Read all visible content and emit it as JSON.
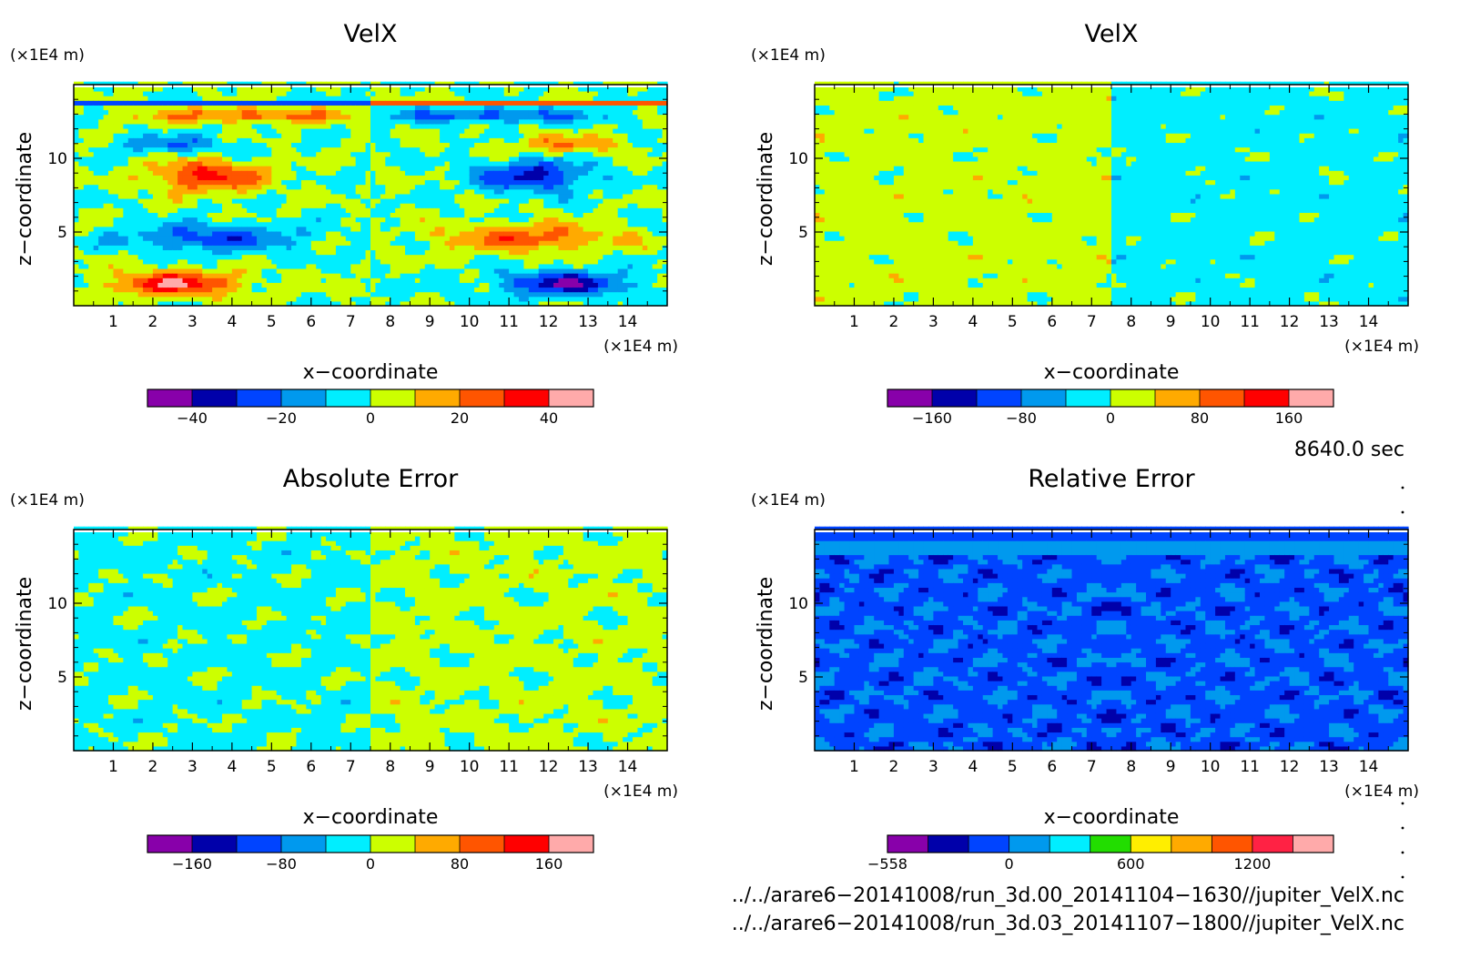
{
  "panels": [
    {
      "title": "VelX",
      "xlabel": "x−coordinate",
      "ylabel": "z−coordinate",
      "x_unit": "(×1E4 m)",
      "y_unit": "(×1E4 m)",
      "x_ticks": [
        "1",
        "2",
        "3",
        "4",
        "5",
        "6",
        "7",
        "8",
        "9",
        "10",
        "11",
        "12",
        "13",
        "14"
      ],
      "y_ticks": [
        "5",
        "10"
      ],
      "colorbar": {
        "colors": [
          "#8800aa",
          "#0000aa",
          "#0044ff",
          "#0099ee",
          "#00eeff",
          "#ccff00",
          "#ffaa00",
          "#ff5500",
          "#ff0000",
          "#ffaaaa"
        ],
        "ticks": [
          {
            "value": -40,
            "label": "−40",
            "pos": 1
          },
          {
            "value": -20,
            "label": "−20",
            "pos": 3
          },
          {
            "value": 0,
            "label": "0",
            "pos": 5
          },
          {
            "value": 20,
            "label": "20",
            "pos": 7
          },
          {
            "value": 40,
            "label": "40",
            "pos": 9
          }
        ]
      },
      "field": "velx"
    },
    {
      "title": "VelX",
      "xlabel": "x−coordinate",
      "ylabel": "z−coordinate",
      "x_unit": "(×1E4 m)",
      "y_unit": "(×1E4 m)",
      "x_ticks": [
        "1",
        "2",
        "3",
        "4",
        "5",
        "6",
        "7",
        "8",
        "9",
        "10",
        "11",
        "12",
        "13",
        "14"
      ],
      "y_ticks": [
        "5",
        "10"
      ],
      "colorbar": {
        "colors": [
          "#8800aa",
          "#0000aa",
          "#0044ff",
          "#0099ee",
          "#00eeff",
          "#ccff00",
          "#ffaa00",
          "#ff5500",
          "#ff0000",
          "#ffaaaa"
        ],
        "ticks": [
          {
            "value": -160,
            "label": "−160",
            "pos": 1
          },
          {
            "value": -80,
            "label": "−80",
            "pos": 3
          },
          {
            "value": 0,
            "label": "0",
            "pos": 5
          },
          {
            "value": 80,
            "label": "80",
            "pos": 7
          },
          {
            "value": 160,
            "label": "160",
            "pos": 9
          }
        ]
      },
      "field": "two"
    },
    {
      "title": "Absolute Error",
      "xlabel": "x−coordinate",
      "ylabel": "z−coordinate",
      "x_unit": "(×1E4 m)",
      "y_unit": "(×1E4 m)",
      "x_ticks": [
        "1",
        "2",
        "3",
        "4",
        "5",
        "6",
        "7",
        "8",
        "9",
        "10",
        "11",
        "12",
        "13",
        "14"
      ],
      "y_ticks": [
        "5",
        "10"
      ],
      "colorbar": {
        "colors": [
          "#8800aa",
          "#0000aa",
          "#0044ff",
          "#0099ee",
          "#00eeff",
          "#ccff00",
          "#ffaa00",
          "#ff5500",
          "#ff0000",
          "#ffaaaa"
        ],
        "ticks": [
          {
            "value": -160,
            "label": "−160",
            "pos": 1
          },
          {
            "value": -80,
            "label": "−80",
            "pos": 3
          },
          {
            "value": 0,
            "label": "0",
            "pos": 5
          },
          {
            "value": 80,
            "label": "80",
            "pos": 7
          },
          {
            "value": 160,
            "label": "160",
            "pos": 9
          }
        ]
      },
      "field": "abs"
    },
    {
      "title": "Relative Error",
      "xlabel": "x−coordinate",
      "ylabel": "z−coordinate",
      "x_unit": "(×1E4 m)",
      "y_unit": "(×1E4 m)",
      "x_ticks": [
        "1",
        "2",
        "3",
        "4",
        "5",
        "6",
        "7",
        "8",
        "9",
        "10",
        "11",
        "12",
        "13",
        "14"
      ],
      "y_ticks": [
        "5",
        "10"
      ],
      "colorbar": {
        "colors": [
          "#8800aa",
          "#0000aa",
          "#0044ff",
          "#0099ee",
          "#00eeff",
          "#22dd00",
          "#ffee00",
          "#ffaa00",
          "#ff5500",
          "#ff2244",
          "#ffaaaa"
        ],
        "ticks": [
          {
            "value": -558,
            "label": "−558",
            "pos": 0
          },
          {
            "value": 0,
            "label": "0",
            "pos": 3
          },
          {
            "value": 600,
            "label": "600",
            "pos": 6
          },
          {
            "value": 1200,
            "label": "1200",
            "pos": 9
          }
        ]
      },
      "field": "rel"
    }
  ],
  "time_label": "8640.0 sec",
  "file_paths": [
    "../../arare6−20141008/run_3d.00_20141104−1630//jupiter_VelX.nc",
    "../../arare6−20141008/run_3d.03_20141107−1800//jupiter_VelX.nc"
  ],
  "chart_data": [
    {
      "type": "heatmap",
      "title": "VelX",
      "xlabel": "x−coordinate",
      "ylabel": "z−coordinate",
      "x_unit": "×1E4 m",
      "y_unit": "×1E4 m",
      "xlim": [
        0,
        15
      ],
      "ylim": [
        0,
        15
      ],
      "colorbar_levels": [
        -50,
        -40,
        -30,
        -20,
        -10,
        0,
        10,
        20,
        30,
        40,
        50
      ],
      "colorbar_ticks": [
        -40,
        -20,
        0,
        20,
        40
      ]
    },
    {
      "type": "heatmap",
      "title": "VelX",
      "xlabel": "x−coordinate",
      "ylabel": "z−coordinate",
      "x_unit": "×1E4 m",
      "y_unit": "×1E4 m",
      "xlim": [
        0,
        15
      ],
      "ylim": [
        0,
        15
      ],
      "colorbar_levels": [
        -200,
        -160,
        -120,
        -80,
        -40,
        0,
        40,
        80,
        120,
        160,
        200
      ],
      "colorbar_ticks": [
        -160,
        -80,
        0,
        80,
        160
      ]
    },
    {
      "type": "heatmap",
      "title": "Absolute Error",
      "xlabel": "x−coordinate",
      "ylabel": "z−coordinate",
      "x_unit": "×1E4 m",
      "y_unit": "×1E4 m",
      "xlim": [
        0,
        15
      ],
      "ylim": [
        0,
        15
      ],
      "colorbar_levels": [
        -200,
        -160,
        -120,
        -80,
        -40,
        0,
        40,
        80,
        120,
        160,
        200
      ],
      "colorbar_ticks": [
        -160,
        -80,
        0,
        80,
        160
      ]
    },
    {
      "type": "heatmap",
      "title": "Relative Error",
      "xlabel": "x−coordinate",
      "ylabel": "z−coordinate",
      "x_unit": "×1E4 m",
      "y_unit": "×1E4 m",
      "xlim": [
        0,
        15
      ],
      "ylim": [
        0,
        15
      ],
      "colorbar_ticks": [
        -558,
        0,
        600,
        1200
      ]
    }
  ]
}
